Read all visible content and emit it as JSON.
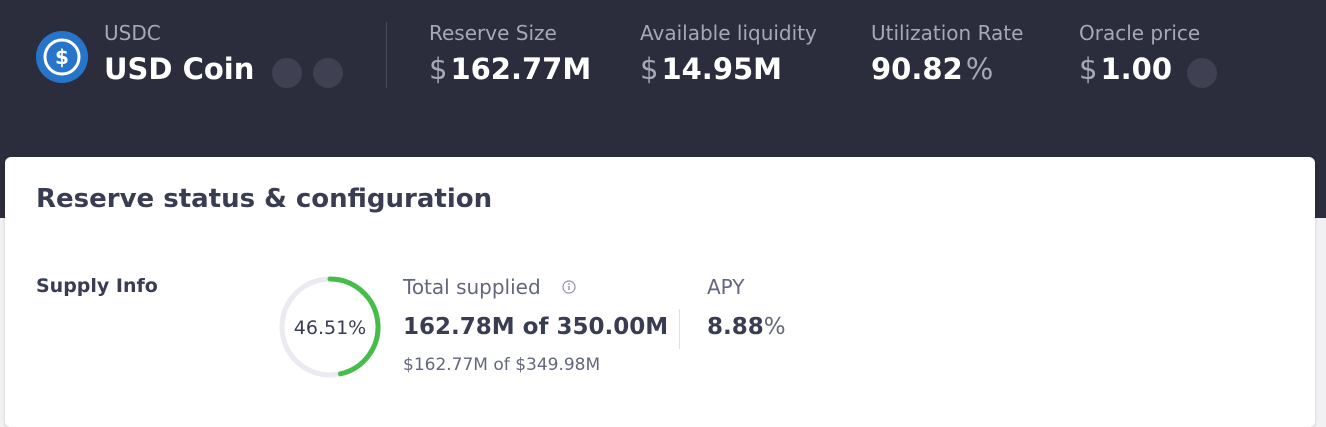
{
  "header": {
    "symbol": "USDC",
    "name": "USD Coin",
    "stats": [
      {
        "label": "Reserve Size",
        "prefix": "$",
        "value": "162.77M"
      },
      {
        "label": "Available liquidity",
        "prefix": "$",
        "value": "14.95M"
      },
      {
        "label": "Utilization Rate",
        "value": "90.82",
        "suffix": "%"
      },
      {
        "label": "Oracle price",
        "prefix": "$",
        "value": "1.00"
      }
    ]
  },
  "panel": {
    "title": "Reserve status & configuration",
    "supply": {
      "label": "Supply Info",
      "gauge": {
        "value": 46.51,
        "label": "46.51%"
      },
      "total": {
        "label": "Total supplied",
        "amount": "162.78M",
        "of": "of",
        "cap": "350.00M",
        "usd": {
          "amount_prefix": "$",
          "amount": "162.77M",
          "of": "of",
          "cap_prefix": "$",
          "cap": "349.98M"
        }
      },
      "apy": {
        "label": "APY",
        "value": "8.88",
        "suffix": "%"
      }
    }
  }
}
